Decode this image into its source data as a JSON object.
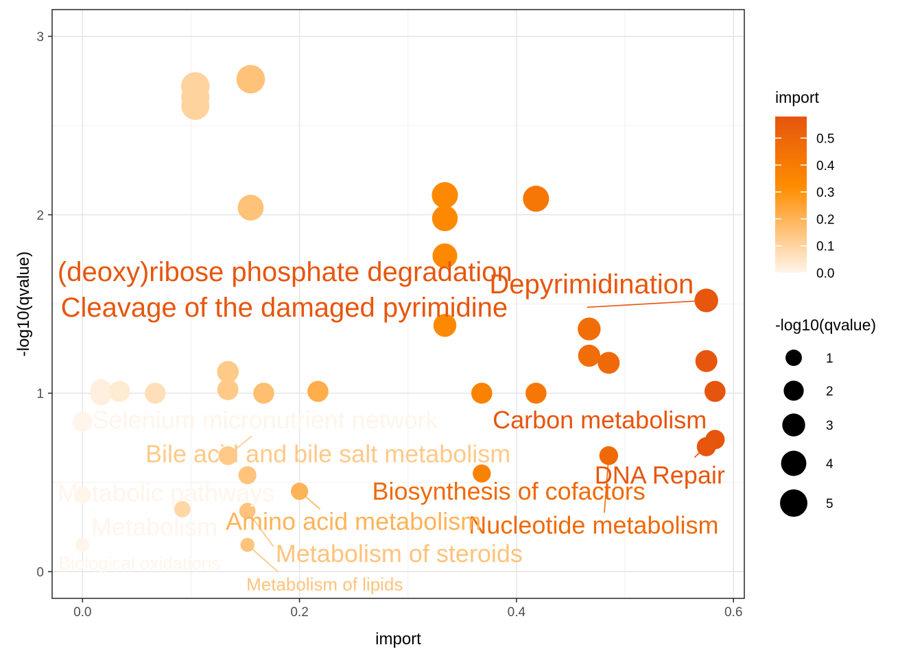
{
  "chart_data": {
    "type": "scatter",
    "title": "",
    "xlabel": "import",
    "ylabel": "-log10(qvalue)",
    "xlim": [
      -0.028,
      0.61
    ],
    "ylim": [
      -0.15,
      3.15
    ],
    "x_ticks": [
      {
        "value": 0.0,
        "label": "0.0"
      },
      {
        "value": 0.2,
        "label": "0.2"
      },
      {
        "value": 0.4,
        "label": "0.4"
      },
      {
        "value": 0.6,
        "label": "0.6"
      }
    ],
    "y_ticks": [
      {
        "value": 0,
        "label": "0"
      },
      {
        "value": 1,
        "label": "1"
      },
      {
        "value": 2,
        "label": "2"
      },
      {
        "value": 3,
        "label": "3"
      }
    ],
    "grid": true,
    "color_scale": {
      "low": "#FFF5EB",
      "mid": "#FF8C00",
      "high": "#E6550D",
      "max": 0.58
    },
    "color_legend": {
      "title": "import",
      "ticks": [
        {
          "value": 0.0,
          "label": "0.0"
        },
        {
          "value": 0.1,
          "label": "0.1"
        },
        {
          "value": 0.2,
          "label": "0.2"
        },
        {
          "value": 0.3,
          "label": "0.3"
        },
        {
          "value": 0.4,
          "label": "0.4"
        },
        {
          "value": 0.5,
          "label": "0.5"
        }
      ]
    },
    "size_legend": {
      "title": "-log10(qvalue)",
      "values": [
        {
          "value": 1,
          "label": "1"
        },
        {
          "value": 2,
          "label": "2"
        },
        {
          "value": 3,
          "label": "3"
        },
        {
          "value": 4,
          "label": "4"
        },
        {
          "value": 5,
          "label": "5"
        }
      ]
    },
    "points": [
      {
        "x": 0.104,
        "y": 2.72
      },
      {
        "x": 0.104,
        "y": 2.66
      },
      {
        "x": 0.104,
        "y": 2.61
      },
      {
        "x": 0.155,
        "y": 2.76
      },
      {
        "x": 0.155,
        "y": 2.04
      },
      {
        "x": 0.334,
        "y": 2.11
      },
      {
        "x": 0.334,
        "y": 1.98
      },
      {
        "x": 0.334,
        "y": 1.77
      },
      {
        "x": 0.334,
        "y": 1.38
      },
      {
        "x": 0.418,
        "y": 2.09
      },
      {
        "x": 0.418,
        "y": 1.0
      },
      {
        "x": 0.575,
        "y": 1.52
      },
      {
        "x": 0.467,
        "y": 1.36
      },
      {
        "x": 0.467,
        "y": 1.21
      },
      {
        "x": 0.485,
        "y": 1.17
      },
      {
        "x": 0.575,
        "y": 1.18
      },
      {
        "x": 0.583,
        "y": 1.01
      },
      {
        "x": 0.583,
        "y": 0.74
      },
      {
        "x": 0.575,
        "y": 0.7
      },
      {
        "x": 0.485,
        "y": 0.65
      },
      {
        "x": 0.368,
        "y": 1.0
      },
      {
        "x": 0.368,
        "y": 0.55
      },
      {
        "x": 0.017,
        "y": 1.02
      },
      {
        "x": 0.017,
        "y": 0.99
      },
      {
        "x": 0.034,
        "y": 1.01
      },
      {
        "x": 0.067,
        "y": 1.0
      },
      {
        "x": 0.134,
        "y": 1.12
      },
      {
        "x": 0.134,
        "y": 1.02
      },
      {
        "x": 0.167,
        "y": 1.0
      },
      {
        "x": 0.217,
        "y": 1.01
      },
      {
        "x": 0.0,
        "y": 0.84
      },
      {
        "x": 0.134,
        "y": 0.65
      },
      {
        "x": 0.152,
        "y": 0.54
      },
      {
        "x": 0.0,
        "y": 0.43
      },
      {
        "x": 0.2,
        "y": 0.45
      },
      {
        "x": 0.092,
        "y": 0.35
      },
      {
        "x": 0.152,
        "y": 0.34
      },
      {
        "x": 0.0,
        "y": 0.15
      },
      {
        "x": 0.152,
        "y": 0.15
      }
    ],
    "labels": [
      {
        "text": "(deoxy)ribose phosphate degradation",
        "x": 0.575,
        "y": 1.52,
        "lx": -0.023,
        "ly": 1.67,
        "size": 40,
        "anchor": "start"
      },
      {
        "text": "Depyrimidination",
        "x": 0.575,
        "y": 1.52,
        "lx": 0.375,
        "ly": 1.6,
        "size": 40,
        "anchor": "start"
      },
      {
        "text": "Cleavage of the damaged pyrimidine",
        "x": 0.575,
        "y": 1.52,
        "lx": -0.02,
        "ly": 1.47,
        "size": 40,
        "anchor": "start",
        "line_from": 0.465
      },
      {
        "text": "Carbon metabolism",
        "x": 0.583,
        "y": 0.74,
        "lx": 0.378,
        "ly": 0.84,
        "size": 36,
        "anchor": "start"
      },
      {
        "text": "DNA Repair",
        "x": 0.575,
        "y": 0.7,
        "lx": 0.472,
        "ly": 0.53,
        "size": 36,
        "anchor": "start",
        "line_from": [
          0.564,
          0.64
        ]
      },
      {
        "text": "Biosynthesis of cofactors",
        "x": 0.485,
        "y": 0.65,
        "lx": 0.267,
        "ly": 0.44,
        "size": 36,
        "anchor": "start"
      },
      {
        "text": "Nucleotide metabolism",
        "x": 0.485,
        "y": 0.65,
        "lx": 0.356,
        "ly": 0.25,
        "size": 36,
        "anchor": "start",
        "line_from": [
          0.481,
          0.33
        ]
      },
      {
        "text": "Selenium micronutrient network",
        "x": 0.0,
        "y": 0.84,
        "lx": 0.009,
        "ly": 0.84,
        "size": 36,
        "anchor": "start"
      },
      {
        "text": "Bile acid and bile salt metabolism",
        "x": 0.134,
        "y": 0.65,
        "lx": 0.058,
        "ly": 0.65,
        "size": 36,
        "anchor": "start",
        "line_from": [
          0.156,
          0.76
        ]
      },
      {
        "text": "Metabolic pathways",
        "x": 0.0,
        "y": 0.43,
        "lx": -0.023,
        "ly": 0.43,
        "size": 36,
        "anchor": "start"
      },
      {
        "text": "Amino acid metabolism",
        "x": 0.2,
        "y": 0.45,
        "lx": 0.132,
        "ly": 0.27,
        "size": 36,
        "anchor": "start",
        "line_from": [
          0.219,
          0.35
        ]
      },
      {
        "text": "Metabolism",
        "x": 0.0,
        "y": 0.15,
        "lx": 0.008,
        "ly": 0.24,
        "size": 36,
        "anchor": "start"
      },
      {
        "text": "Metabolism of steroids",
        "x": 0.152,
        "y": 0.34,
        "lx": 0.178,
        "ly": 0.09,
        "size": 36,
        "anchor": "start",
        "line_from": [
          0.176,
          0.14
        ]
      },
      {
        "text": "Biological oxidations",
        "x": 0.0,
        "y": 0.15,
        "lx": -0.022,
        "ly": 0.04,
        "size": 26,
        "anchor": "start"
      },
      {
        "text": "Metabolism of lipids",
        "x": 0.152,
        "y": 0.15,
        "lx": 0.151,
        "ly": -0.08,
        "size": 26,
        "anchor": "start",
        "line_from": [
          0.18,
          0.0
        ]
      }
    ]
  }
}
